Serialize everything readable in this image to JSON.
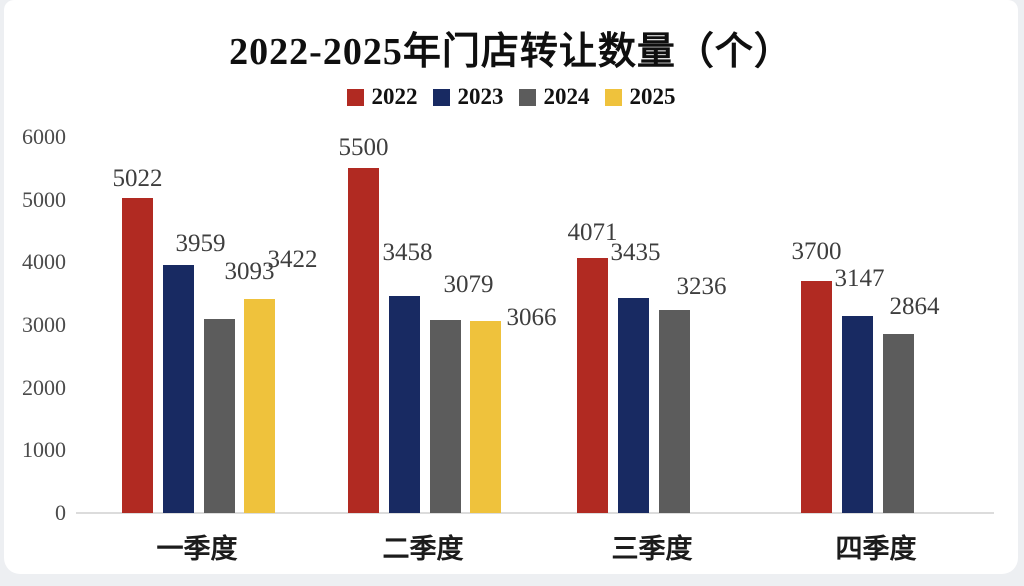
{
  "title": "2022-2025年门店转让数量（个）",
  "chart_data": {
    "type": "bar",
    "title": "2022-2025年门店转让数量（个）",
    "categories": [
      "一季度",
      "二季度",
      "三季度",
      "四季度"
    ],
    "series": [
      {
        "name": "2022",
        "color": "#b12a22",
        "values": [
          5022,
          5500,
          4071,
          3700
        ]
      },
      {
        "name": "2023",
        "color": "#182a62",
        "values": [
          3959,
          3458,
          3435,
          3147
        ]
      },
      {
        "name": "2024",
        "color": "#5c5c5c",
        "values": [
          3093,
          3079,
          3236,
          2864
        ]
      },
      {
        "name": "2025",
        "color": "#efc23c",
        "values": [
          3422,
          3066,
          null,
          null
        ]
      }
    ],
    "y_ticks": [
      0,
      1000,
      2000,
      3000,
      4000,
      5000,
      6000
    ],
    "ylim": [
      0,
      6000
    ],
    "xlabel": "",
    "ylabel": "",
    "grid": false,
    "legend_position": "top",
    "data_labels": true
  },
  "colors": {
    "card_background": "#ffffff",
    "page_background": "#edeff2",
    "axis_line": "#dcdcdc",
    "tick_text": "#4b4b4b",
    "data_label_text": "#3e3e3e",
    "title_text": "#0f0f0f"
  }
}
